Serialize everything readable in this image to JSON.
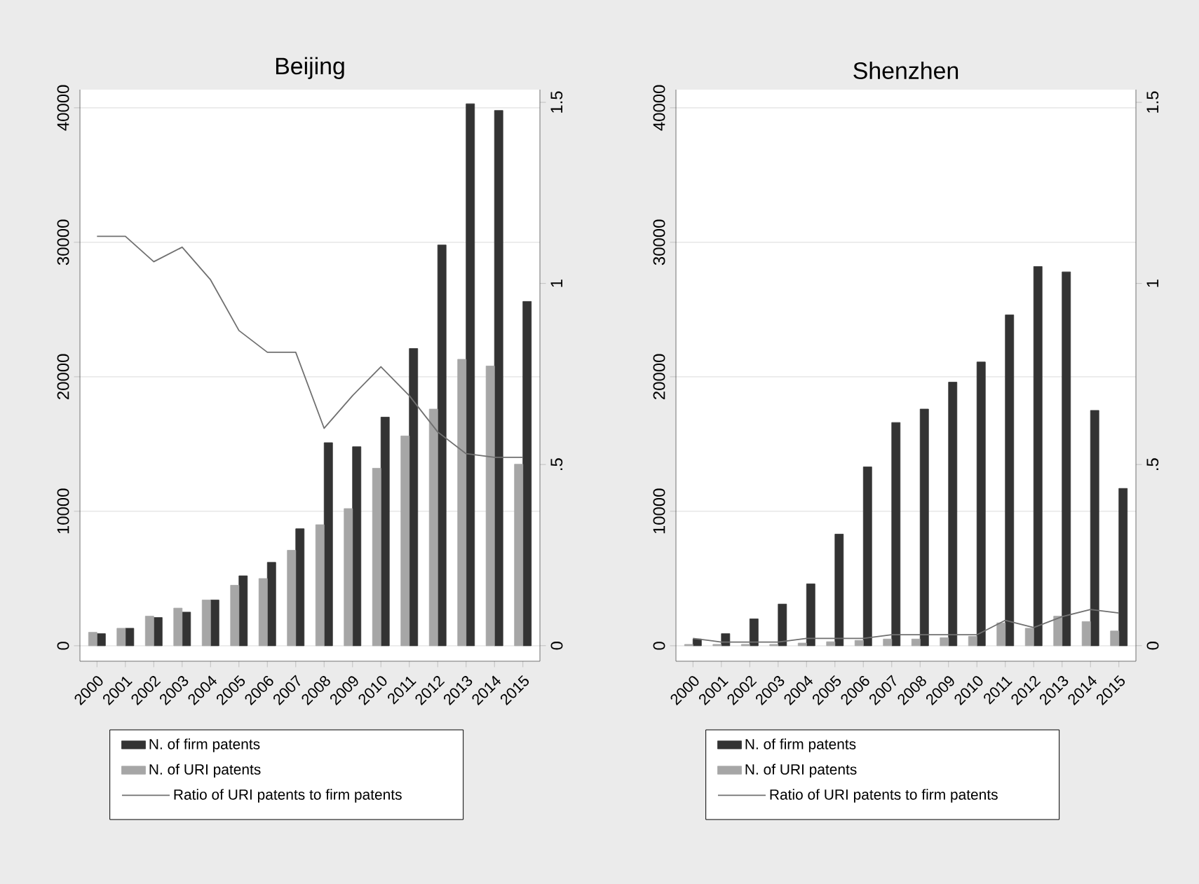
{
  "chart_data": [
    {
      "type": "bar",
      "title": "Beijing",
      "categories": [
        "2000",
        "2001",
        "2002",
        "2003",
        "2004",
        "2005",
        "2006",
        "2007",
        "2008",
        "2009",
        "2010",
        "2011",
        "2012",
        "2013",
        "2014",
        "2015"
      ],
      "series": [
        {
          "name": "N. of firm patents",
          "color": "#333333",
          "values": [
            900,
            1300,
            2100,
            2500,
            3400,
            5200,
            6200,
            8700,
            15100,
            14800,
            17000,
            22100,
            29800,
            40300,
            39800,
            25600
          ]
        },
        {
          "name": "N. of URI patents",
          "color": "#a6a6a6",
          "values": [
            1000,
            1300,
            2200,
            2800,
            3400,
            4500,
            5000,
            7100,
            9000,
            10200,
            13200,
            15600,
            17600,
            21300,
            20800,
            13500
          ]
        },
        {
          "name": "Ratio of URI patents to firm patents",
          "type": "line",
          "axis": "y2",
          "color": "#707070",
          "values": [
            1.13,
            1.13,
            1.06,
            1.1,
            1.01,
            0.87,
            0.81,
            0.81,
            0.6,
            0.69,
            0.77,
            0.69,
            0.59,
            0.53,
            0.52,
            0.52
          ]
        }
      ],
      "ylim": [
        -1150,
        41350
      ],
      "yticks": [
        0,
        10000,
        20000,
        30000,
        40000
      ],
      "y2lim": [
        -0.043,
        1.535
      ],
      "y2ticks": [
        0,
        {
          "value": 0.5,
          "label": ".5"
        },
        1,
        1.5
      ],
      "grid": "y",
      "legend": "bottom"
    },
    {
      "type": "bar",
      "title": "Shenzhen",
      "categories": [
        "2000",
        "2001",
        "2002",
        "2003",
        "2004",
        "2005",
        "2006",
        "2007",
        "2008",
        "2009",
        "2010",
        "2011",
        "2012",
        "2013",
        "2014",
        "2015"
      ],
      "series": [
        {
          "name": "N. of firm patents",
          "color": "#333333",
          "values": [
            500,
            900,
            2000,
            3100,
            4600,
            8300,
            13300,
            16600,
            17600,
            19600,
            21100,
            24600,
            28200,
            27800,
            17500,
            11700
          ]
        },
        {
          "name": "N. of URI patents",
          "color": "#a6a6a6",
          "values": [
            100,
            100,
            100,
            100,
            200,
            300,
            400,
            500,
            500,
            600,
            700,
            1700,
            1300,
            2200,
            1800,
            1100
          ]
        },
        {
          "name": "Ratio of URI patents to firm patents",
          "type": "line",
          "axis": "y2",
          "color": "#707070",
          "values": [
            0.02,
            0.01,
            0.01,
            0.01,
            0.02,
            0.02,
            0.02,
            0.03,
            0.03,
            0.03,
            0.03,
            0.07,
            0.05,
            0.08,
            0.1,
            0.09
          ]
        }
      ],
      "ylim": [
        -1150,
        41350
      ],
      "yticks": [
        0,
        10000,
        20000,
        30000,
        40000
      ],
      "y2lim": [
        -0.043,
        1.535
      ],
      "y2ticks": [
        0,
        {
          "value": 0.5,
          "label": ".5"
        },
        1,
        1.5
      ],
      "grid": "y",
      "legend": "bottom"
    }
  ]
}
